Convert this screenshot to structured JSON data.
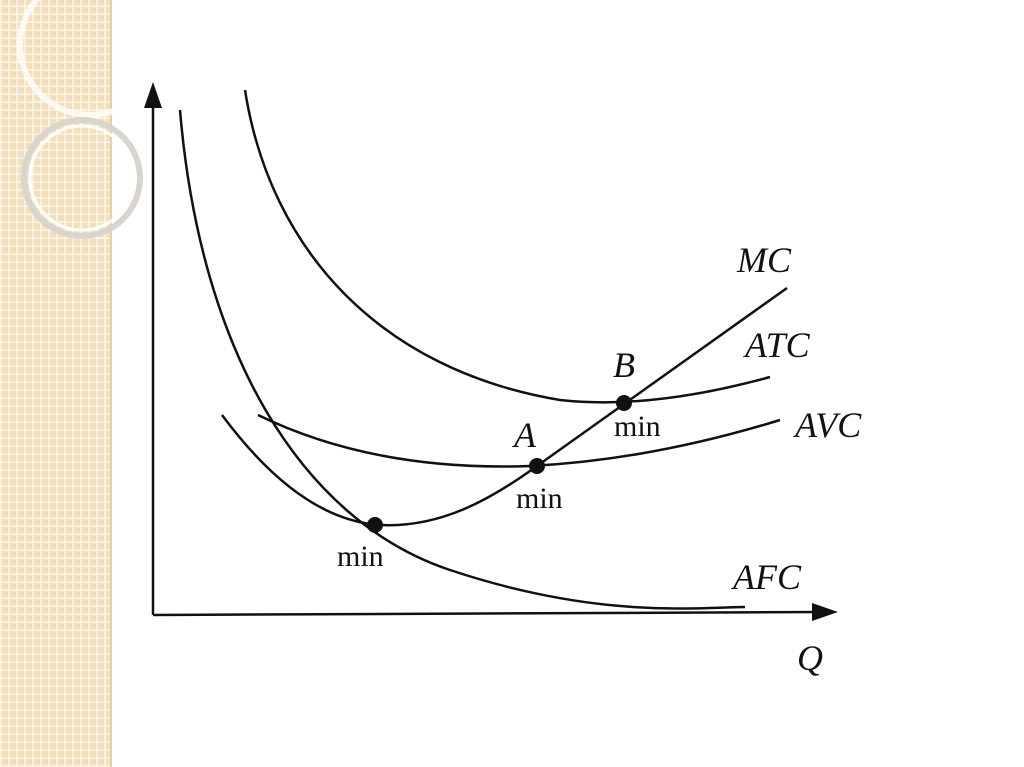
{
  "curves": [
    {
      "label": "MC"
    },
    {
      "label": "ATC"
    },
    {
      "label": "AVC"
    },
    {
      "label": "AFC"
    }
  ],
  "axis": {
    "x": "Q"
  },
  "points": [
    {
      "label": "B",
      "note": "min"
    },
    {
      "label": "A",
      "note": "min"
    },
    {
      "note": "min"
    }
  ]
}
